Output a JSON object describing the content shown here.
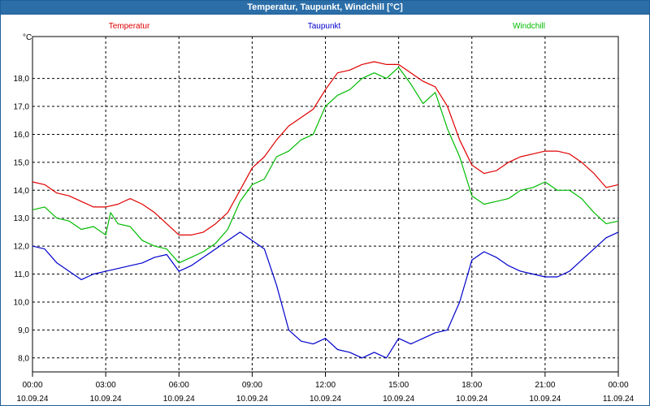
{
  "window": {
    "title": "Temperatur, Taupunkt, Windchill [°C]"
  },
  "chart_data": {
    "type": "line",
    "title": "Temperatur, Taupunkt, Windchill [°C]",
    "ylabel": "°C",
    "ylim": [
      7.5,
      19.5
    ],
    "xlim_hours": [
      0,
      24
    ],
    "grid": true,
    "y_ticks": [
      "8,0",
      "9,0",
      "10,0",
      "11,0",
      "12,0",
      "13,0",
      "14,0",
      "15,0",
      "16,0",
      "17,0",
      "18,0"
    ],
    "x_ticks": [
      {
        "time": "00:00",
        "date": "10.09.24"
      },
      {
        "time": "03:00",
        "date": "10.09.24"
      },
      {
        "time": "06:00",
        "date": "10.09.24"
      },
      {
        "time": "09:00",
        "date": "10.09.24"
      },
      {
        "time": "12:00",
        "date": "10.09.24"
      },
      {
        "time": "15:00",
        "date": "10.09.24"
      },
      {
        "time": "18:00",
        "date": "10.09.24"
      },
      {
        "time": "21:00",
        "date": "10.09.24"
      },
      {
        "time": "00:00",
        "date": "11.09.24"
      }
    ],
    "legend_placement": "top",
    "series": [
      {
        "name": "Temperatur",
        "color": "#e00000",
        "points": [
          [
            0,
            14.3
          ],
          [
            0.5,
            14.2
          ],
          [
            1,
            13.9
          ],
          [
            1.5,
            13.8
          ],
          [
            2,
            13.6
          ],
          [
            2.5,
            13.4
          ],
          [
            3,
            13.4
          ],
          [
            3.5,
            13.5
          ],
          [
            4,
            13.7
          ],
          [
            4.5,
            13.5
          ],
          [
            5,
            13.2
          ],
          [
            5.5,
            12.8
          ],
          [
            6,
            12.4
          ],
          [
            6.5,
            12.4
          ],
          [
            7,
            12.5
          ],
          [
            7.5,
            12.8
          ],
          [
            8,
            13.2
          ],
          [
            8.5,
            14.0
          ],
          [
            9,
            14.8
          ],
          [
            9.5,
            15.2
          ],
          [
            10,
            15.8
          ],
          [
            10.5,
            16.3
          ],
          [
            11,
            16.6
          ],
          [
            11.5,
            16.9
          ],
          [
            12,
            17.6
          ],
          [
            12.5,
            18.2
          ],
          [
            13,
            18.3
          ],
          [
            13.5,
            18.5
          ],
          [
            14,
            18.6
          ],
          [
            14.5,
            18.5
          ],
          [
            15,
            18.5
          ],
          [
            15.5,
            18.2
          ],
          [
            16,
            17.9
          ],
          [
            16.5,
            17.7
          ],
          [
            17,
            17.0
          ],
          [
            17.5,
            15.8
          ],
          [
            18,
            14.9
          ],
          [
            18.5,
            14.6
          ],
          [
            19,
            14.7
          ],
          [
            19.5,
            15.0
          ],
          [
            20,
            15.2
          ],
          [
            20.5,
            15.3
          ],
          [
            21,
            15.4
          ],
          [
            21.5,
            15.4
          ],
          [
            22,
            15.3
          ],
          [
            22.5,
            15.0
          ],
          [
            23,
            14.6
          ],
          [
            23.5,
            14.1
          ],
          [
            24,
            14.2
          ]
        ]
      },
      {
        "name": "Taupunkt",
        "color": "#0000cc",
        "points": [
          [
            0,
            12.0
          ],
          [
            0.5,
            11.9
          ],
          [
            1,
            11.4
          ],
          [
            1.5,
            11.1
          ],
          [
            2,
            10.8
          ],
          [
            2.5,
            11.0
          ],
          [
            3,
            11.1
          ],
          [
            3.5,
            11.2
          ],
          [
            4,
            11.3
          ],
          [
            4.5,
            11.4
          ],
          [
            5,
            11.6
          ],
          [
            5.5,
            11.7
          ],
          [
            6,
            11.1
          ],
          [
            6.5,
            11.3
          ],
          [
            7,
            11.6
          ],
          [
            7.5,
            11.9
          ],
          [
            8,
            12.2
          ],
          [
            8.5,
            12.5
          ],
          [
            9,
            12.2
          ],
          [
            9.5,
            11.9
          ],
          [
            10,
            10.6
          ],
          [
            10.5,
            9.0
          ],
          [
            11,
            8.6
          ],
          [
            11.5,
            8.5
          ],
          [
            12,
            8.7
          ],
          [
            12.5,
            8.3
          ],
          [
            13,
            8.2
          ],
          [
            13.5,
            8.0
          ],
          [
            14,
            8.2
          ],
          [
            14.5,
            8.0
          ],
          [
            15,
            8.7
          ],
          [
            15.5,
            8.5
          ],
          [
            16,
            8.7
          ],
          [
            16.5,
            8.9
          ],
          [
            17,
            9.0
          ],
          [
            17.5,
            10.0
          ],
          [
            18,
            11.5
          ],
          [
            18.5,
            11.8
          ],
          [
            19,
            11.6
          ],
          [
            19.5,
            11.3
          ],
          [
            20,
            11.1
          ],
          [
            20.5,
            11.0
          ],
          [
            21,
            10.9
          ],
          [
            21.5,
            10.9
          ],
          [
            22,
            11.1
          ],
          [
            22.5,
            11.5
          ],
          [
            23,
            11.9
          ],
          [
            23.5,
            12.3
          ],
          [
            24,
            12.5
          ]
        ]
      },
      {
        "name": "Windchill",
        "color": "#00bb00",
        "points": [
          [
            0,
            13.3
          ],
          [
            0.5,
            13.4
          ],
          [
            1,
            13.0
          ],
          [
            1.5,
            12.9
          ],
          [
            2,
            12.6
          ],
          [
            2.5,
            12.7
          ],
          [
            3,
            12.4
          ],
          [
            3.2,
            13.2
          ],
          [
            3.5,
            12.8
          ],
          [
            4,
            12.7
          ],
          [
            4.5,
            12.2
          ],
          [
            5,
            12.0
          ],
          [
            5.5,
            11.9
          ],
          [
            6,
            11.4
          ],
          [
            6.5,
            11.6
          ],
          [
            7,
            11.8
          ],
          [
            7.5,
            12.1
          ],
          [
            8,
            12.6
          ],
          [
            8.5,
            13.6
          ],
          [
            9,
            14.2
          ],
          [
            9.5,
            14.4
          ],
          [
            10,
            15.2
          ],
          [
            10.5,
            15.4
          ],
          [
            11,
            15.8
          ],
          [
            11.5,
            16.0
          ],
          [
            12,
            17.0
          ],
          [
            12.5,
            17.4
          ],
          [
            13,
            17.6
          ],
          [
            13.5,
            18.0
          ],
          [
            14,
            18.2
          ],
          [
            14.5,
            18.0
          ],
          [
            15,
            18.4
          ],
          [
            15.5,
            17.8
          ],
          [
            16,
            17.1
          ],
          [
            16.5,
            17.5
          ],
          [
            17,
            16.2
          ],
          [
            17.5,
            15.2
          ],
          [
            18,
            13.8
          ],
          [
            18.5,
            13.5
          ],
          [
            19,
            13.6
          ],
          [
            19.5,
            13.7
          ],
          [
            20,
            14.0
          ],
          [
            20.5,
            14.1
          ],
          [
            21,
            14.3
          ],
          [
            21.5,
            14.0
          ],
          [
            22,
            14.0
          ],
          [
            22.5,
            13.7
          ],
          [
            23,
            13.2
          ],
          [
            23.5,
            12.8
          ],
          [
            24,
            12.9
          ]
        ]
      }
    ]
  }
}
